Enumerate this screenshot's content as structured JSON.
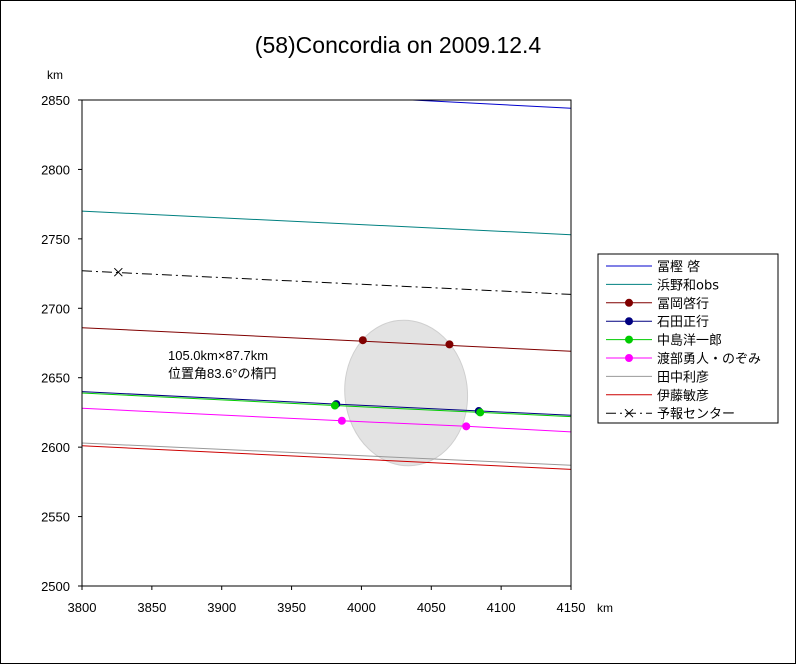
{
  "chart_data": {
    "type": "line",
    "title": "(58)Concordia on 2009.12.4",
    "xlabel": "km",
    "ylabel": "km",
    "xlim": [
      3800,
      4150
    ],
    "ylim": [
      2500,
      2850
    ],
    "xticks": [
      3800,
      3850,
      3900,
      3950,
      4000,
      4050,
      4100,
      4150
    ],
    "yticks": [
      2500,
      2550,
      2600,
      2650,
      2700,
      2750,
      2800,
      2850
    ],
    "grid": false,
    "legend_position": "right",
    "annotation": {
      "line1": "105.0km×87.7km",
      "line2": "位置角83.6°の楕円"
    },
    "ellipse": {
      "center_x": 4032,
      "center_y": 2639,
      "major_km": 105.0,
      "minor_km": 87.7,
      "position_angle_deg": 83.6
    },
    "series": [
      {
        "name": "冨樫 啓",
        "color": "#0000cc",
        "dash": "",
        "marker": "none",
        "path": [
          [
            3960,
            2854
          ],
          [
            4150,
            2844
          ]
        ],
        "points": []
      },
      {
        "name": "浜野和obs",
        "color": "#008080",
        "dash": "",
        "marker": "none",
        "path": [
          [
            3800,
            2770
          ],
          [
            4150,
            2753
          ]
        ],
        "points": []
      },
      {
        "name": "冨岡啓行",
        "color": "#800000",
        "dash": "",
        "marker": "dot",
        "path": [
          [
            3800,
            2686
          ],
          [
            4150,
            2669
          ]
        ],
        "points": [
          [
            4001,
            2677
          ],
          [
            4063,
            2674
          ]
        ]
      },
      {
        "name": "石田正行",
        "color": "#000080",
        "dash": "",
        "marker": "dot",
        "path": [
          [
            3800,
            2640
          ],
          [
            3982,
            2631
          ],
          [
            4085,
            2626
          ],
          [
            4150,
            2623
          ]
        ],
        "points": [
          [
            3982,
            2631
          ],
          [
            4084,
            2626
          ]
        ]
      },
      {
        "name": "中島洋一郎",
        "color": "#00cc00",
        "dash": "",
        "marker": "dot",
        "path": [
          [
            3800,
            2639
          ],
          [
            3981,
            2630
          ],
          [
            4085,
            2625
          ],
          [
            4150,
            2622
          ]
        ],
        "points": [
          [
            3981,
            2630
          ],
          [
            4085,
            2625
          ]
        ]
      },
      {
        "name": "渡部勇人・のぞみ",
        "color": "#ff00ff",
        "dash": "",
        "marker": "dot",
        "path": [
          [
            3800,
            2628
          ],
          [
            3986,
            2619
          ],
          [
            4075,
            2615
          ],
          [
            4150,
            2611
          ]
        ],
        "points": [
          [
            3986,
            2619
          ],
          [
            4075,
            2615
          ]
        ]
      },
      {
        "name": "田中利彦",
        "color": "#999999",
        "dash": "",
        "marker": "none",
        "path": [
          [
            3800,
            2603
          ],
          [
            4150,
            2587
          ]
        ],
        "points": []
      },
      {
        "name": "伊藤敏彦",
        "color": "#cc0000",
        "dash": "",
        "marker": "none",
        "path": [
          [
            3800,
            2601
          ],
          [
            4150,
            2584
          ]
        ],
        "points": []
      },
      {
        "name": "予報センター",
        "color": "#000000",
        "dash": "10,4,2,4",
        "marker": "cross",
        "path": [
          [
            3800,
            2727
          ],
          [
            4150,
            2710
          ]
        ],
        "points": [
          [
            3826,
            2726
          ]
        ]
      }
    ]
  }
}
